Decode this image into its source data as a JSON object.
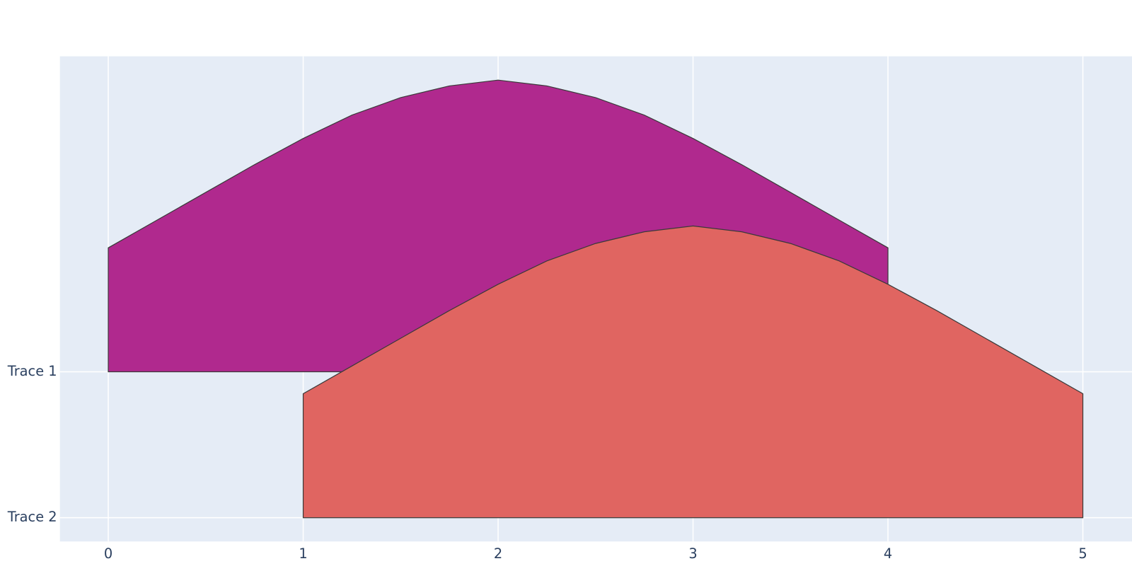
{
  "chart_data": {
    "type": "ridgeline",
    "xlim": [
      -0.248,
      5.252
    ],
    "xticks": [
      0,
      1,
      2,
      3,
      4,
      5
    ],
    "ylim": [
      -0.163,
      3.163
    ],
    "yticks": [
      {
        "value": 1,
        "label": "Trace 1"
      },
      {
        "value": 0,
        "label": "Trace 2"
      }
    ],
    "grid": true,
    "series": [
      {
        "name": "Trace 1",
        "color": "#b0298e",
        "base": 1,
        "x": [
          0,
          0.25,
          0.5,
          0.75,
          1,
          1.25,
          1.5,
          1.75,
          2,
          2.25,
          2.5,
          2.75,
          3,
          3.25,
          3.5,
          3.75,
          4
        ],
        "values": [
          1.85,
          2.04,
          2.23,
          2.42,
          2.6,
          2.76,
          2.88,
          2.96,
          3.0,
          2.96,
          2.88,
          2.76,
          2.6,
          2.42,
          2.23,
          2.04,
          1.85
        ]
      },
      {
        "name": "Trace 2",
        "color": "#e06561",
        "base": 0,
        "x": [
          1,
          1.25,
          1.5,
          1.75,
          2,
          2.25,
          2.5,
          2.75,
          3,
          3.25,
          3.5,
          3.75,
          4,
          4.25,
          4.5,
          4.75,
          5
        ],
        "values": [
          0.85,
          1.04,
          1.23,
          1.42,
          1.6,
          1.76,
          1.88,
          1.96,
          2.0,
          1.96,
          1.88,
          1.76,
          1.6,
          1.42,
          1.23,
          1.04,
          0.85
        ]
      }
    ]
  }
}
